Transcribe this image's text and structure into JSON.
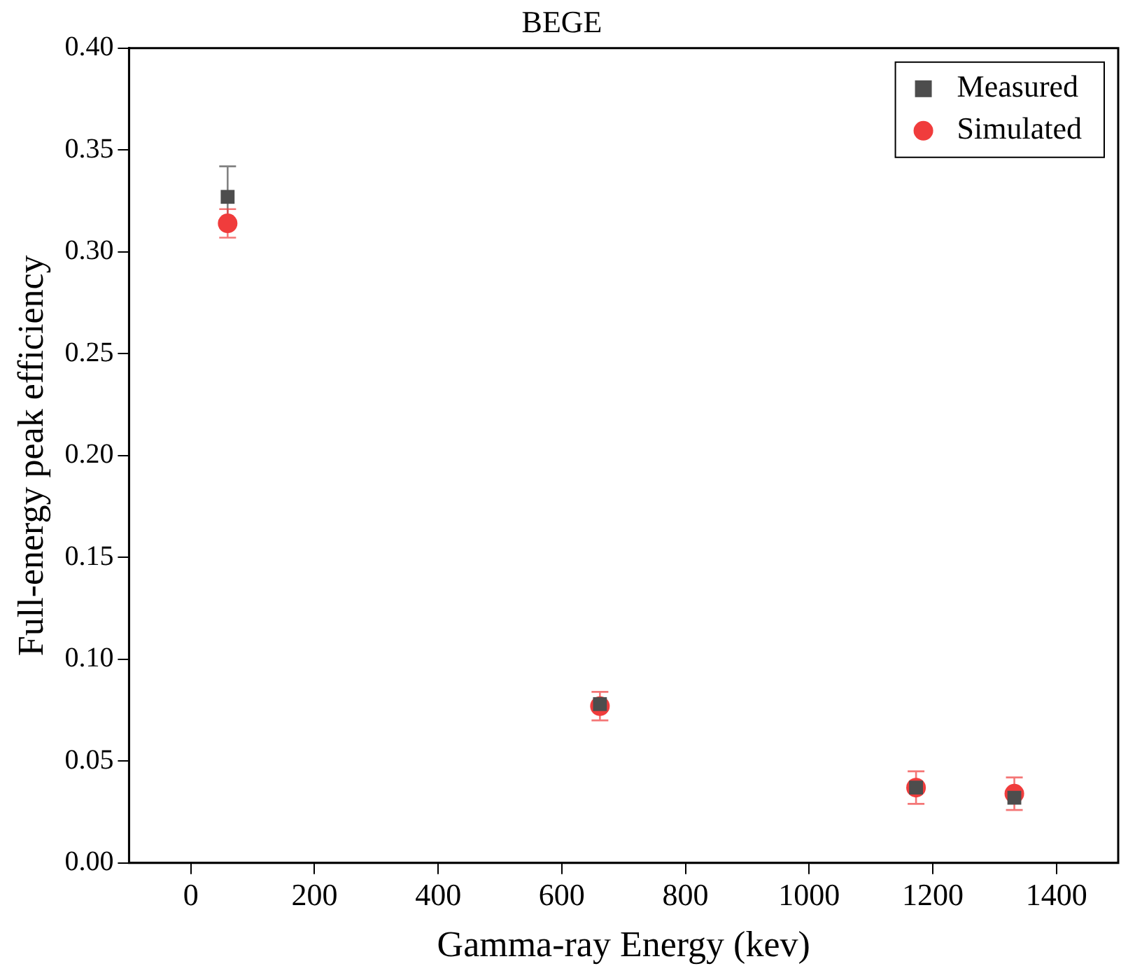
{
  "chart_data": {
    "type": "scatter",
    "title": "BEGE",
    "xlabel": "Gamma-ray Energy (kev)",
    "ylabel": "Full-energy peak efficiency",
    "x": [
      59.5,
      661.7,
      1173,
      1332
    ],
    "series": [
      {
        "name": "Measured",
        "color": "#4d4d4d",
        "marker": "square",
        "values": [
          0.327,
          0.078,
          0.037,
          0.032
        ],
        "errors": [
          0.015,
          null,
          null,
          null
        ]
      },
      {
        "name": "Simulated",
        "color": "#f03c3c",
        "marker": "circle",
        "values": [
          0.314,
          0.077,
          0.037,
          0.034
        ],
        "errors": [
          0.007,
          0.007,
          0.008,
          0.008
        ]
      }
    ],
    "xlim": [
      -100,
      1500
    ],
    "xticks": [
      0,
      200,
      400,
      600,
      800,
      1000,
      1200,
      1400
    ],
    "ylim": [
      0,
      0.4
    ],
    "yticks": [
      {
        "value": 0,
        "label": "0.00"
      },
      {
        "value": 0.05,
        "label": "0.05"
      },
      {
        "value": 0.1,
        "label": "0.10"
      },
      {
        "value": 0.15,
        "label": "0.15"
      },
      {
        "value": 0.2,
        "label": "0.20"
      },
      {
        "value": 0.25,
        "label": "0.25"
      },
      {
        "value": 0.3,
        "label": "0.30"
      },
      {
        "value": 0.35,
        "label": "0.35"
      },
      {
        "value": 0.4,
        "label": "0.40"
      }
    ],
    "grid": false,
    "legend": "top right"
  }
}
